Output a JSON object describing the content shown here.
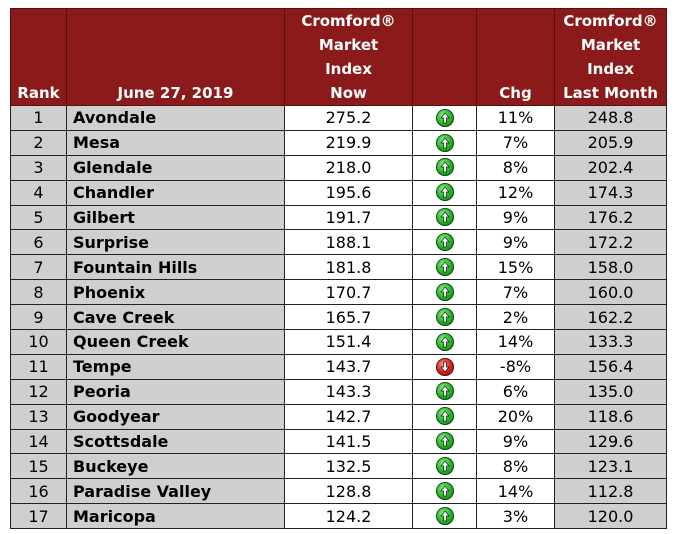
{
  "header": {
    "rank": "Rank",
    "date": "June 27, 2019",
    "now": [
      "Cromford®",
      "Market",
      "Index",
      "Now"
    ],
    "chg": "Chg",
    "last": [
      "Cromford®",
      "Market",
      "Index",
      "Last Month"
    ]
  },
  "colors": {
    "header_bg": "#8b1a1a",
    "up": "#27b82a",
    "down": "#e02020",
    "shaded": "#cfcfcf"
  },
  "rows": [
    {
      "rank": "1",
      "city": "Avondale",
      "now": "275.2",
      "dir": "up-arrow-icon",
      "chg": "11%",
      "last": "248.8"
    },
    {
      "rank": "2",
      "city": "Mesa",
      "now": "219.9",
      "dir": "up-arrow-icon",
      "chg": "7%",
      "last": "205.9"
    },
    {
      "rank": "3",
      "city": "Glendale",
      "now": "218.0",
      "dir": "up-arrow-icon",
      "chg": "8%",
      "last": "202.4"
    },
    {
      "rank": "4",
      "city": "Chandler",
      "now": "195.6",
      "dir": "up-arrow-icon",
      "chg": "12%",
      "last": "174.3"
    },
    {
      "rank": "5",
      "city": "Gilbert",
      "now": "191.7",
      "dir": "up-arrow-icon",
      "chg": "9%",
      "last": "176.2"
    },
    {
      "rank": "6",
      "city": "Surprise",
      "now": "188.1",
      "dir": "up-arrow-icon",
      "chg": "9%",
      "last": "172.2"
    },
    {
      "rank": "7",
      "city": "Fountain Hills",
      "now": "181.8",
      "dir": "up-arrow-icon",
      "chg": "15%",
      "last": "158.0"
    },
    {
      "rank": "8",
      "city": "Phoenix",
      "now": "170.7",
      "dir": "up-arrow-icon",
      "chg": "7%",
      "last": "160.0"
    },
    {
      "rank": "9",
      "city": "Cave Creek",
      "now": "165.7",
      "dir": "up-arrow-icon",
      "chg": "2%",
      "last": "162.2"
    },
    {
      "rank": "10",
      "city": "Queen Creek",
      "now": "151.4",
      "dir": "up-arrow-icon",
      "chg": "14%",
      "last": "133.3"
    },
    {
      "rank": "11",
      "city": "Tempe",
      "now": "143.7",
      "dir": "down-arrow-icon",
      "chg": "-8%",
      "last": "156.4"
    },
    {
      "rank": "12",
      "city": "Peoria",
      "now": "143.3",
      "dir": "up-arrow-icon",
      "chg": "6%",
      "last": "135.0"
    },
    {
      "rank": "13",
      "city": "Goodyear",
      "now": "142.7",
      "dir": "up-arrow-icon",
      "chg": "20%",
      "last": "118.6"
    },
    {
      "rank": "14",
      "city": "Scottsdale",
      "now": "141.5",
      "dir": "up-arrow-icon",
      "chg": "9%",
      "last": "129.6"
    },
    {
      "rank": "15",
      "city": "Buckeye",
      "now": "132.5",
      "dir": "up-arrow-icon",
      "chg": "8%",
      "last": "123.1"
    },
    {
      "rank": "16",
      "city": "Paradise Valley",
      "now": "128.8",
      "dir": "up-arrow-icon",
      "chg": "14%",
      "last": "112.8"
    },
    {
      "rank": "17",
      "city": "Maricopa",
      "now": "124.2",
      "dir": "up-arrow-icon",
      "chg": "3%",
      "last": "120.0"
    }
  ]
}
